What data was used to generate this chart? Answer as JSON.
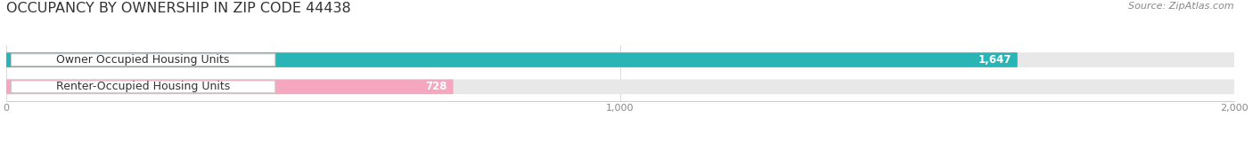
{
  "title": "OCCUPANCY BY OWNERSHIP IN ZIP CODE 44438",
  "source": "Source: ZipAtlas.com",
  "categories": [
    "Owner Occupied Housing Units",
    "Renter-Occupied Housing Units"
  ],
  "values": [
    1647,
    728
  ],
  "bar_colors": [
    "#29b5b5",
    "#f4a7bf"
  ],
  "label_bg_colors": [
    "#ffffff",
    "#ffffff"
  ],
  "xlim": [
    0,
    2000
  ],
  "xticks": [
    0,
    1000,
    2000
  ],
  "xtick_labels": [
    "0",
    "1,000",
    "2,000"
  ],
  "bar_track_color": "#e8e8e8",
  "title_fontsize": 11.5,
  "label_fontsize": 9,
  "value_fontsize": 8.5,
  "source_fontsize": 8,
  "background_color": "#ffffff"
}
